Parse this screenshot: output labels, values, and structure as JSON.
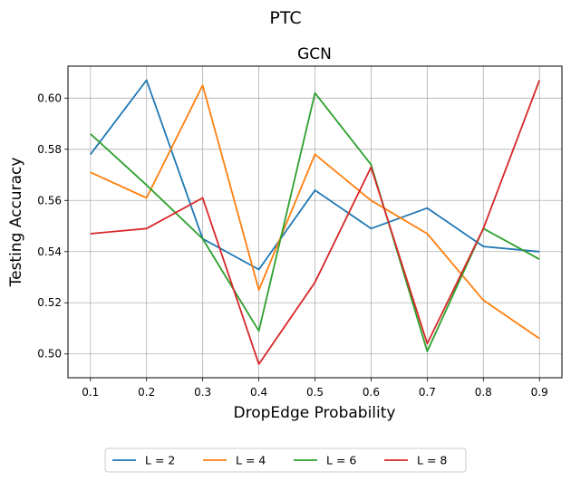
{
  "suptitle": "PTC",
  "chart_data": {
    "type": "line",
    "title": "GCN",
    "xlabel": "DropEdge Probability",
    "ylabel": "Testing Accuracy",
    "x": [
      0.1,
      0.2,
      0.3,
      0.4,
      0.5,
      0.6,
      0.7,
      0.8,
      0.9
    ],
    "x_tick_labels": [
      "0.1",
      "0.2",
      "0.3",
      "0.4",
      "0.5",
      "0.6",
      "0.7",
      "0.8",
      "0.9"
    ],
    "xlim": [
      0.06,
      0.94
    ],
    "y_ticks": [
      0.5,
      0.52,
      0.54,
      0.56,
      0.58,
      0.6
    ],
    "y_tick_labels": [
      "0.50",
      "0.52",
      "0.54",
      "0.56",
      "0.58",
      "0.60"
    ],
    "ylim": [
      0.4907,
      0.6125
    ],
    "grid": true,
    "legend_position": "bottom-center",
    "series": [
      {
        "name": "L = 2",
        "color": "#1f77b4",
        "values": [
          0.578,
          0.607,
          0.545,
          0.533,
          0.564,
          0.549,
          0.557,
          0.542,
          0.54
        ]
      },
      {
        "name": "L = 4",
        "color": "#ff7f0e",
        "values": [
          0.571,
          0.561,
          0.605,
          0.525,
          0.578,
          0.56,
          0.547,
          0.521,
          0.506
        ]
      },
      {
        "name": "L = 6",
        "color": "#2ca02c",
        "values": [
          0.586,
          0.566,
          0.545,
          0.509,
          0.602,
          0.574,
          0.501,
          0.549,
          0.537
        ]
      },
      {
        "name": "L = 8",
        "color": "#d62728",
        "values": [
          0.547,
          0.549,
          0.561,
          0.496,
          0.528,
          0.573,
          0.504,
          0.549,
          0.607
        ]
      }
    ]
  }
}
